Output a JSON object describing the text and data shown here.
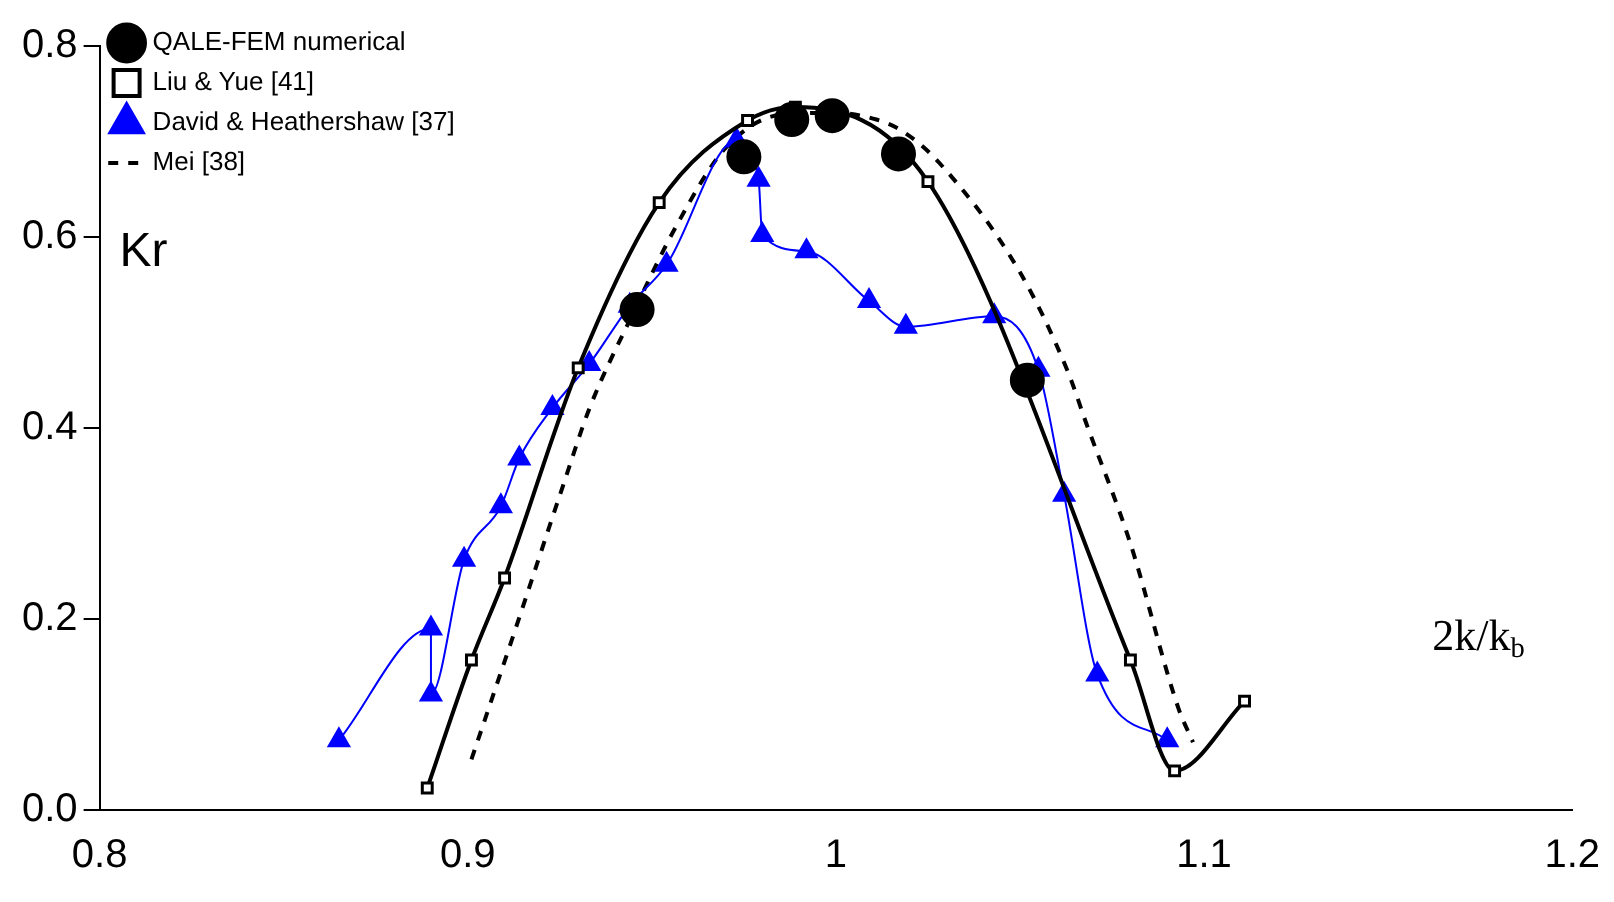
{
  "chart_data": {
    "type": "line",
    "ylabel": "Kr",
    "xlabel": "2k/k$_{b}$",
    "xlim": [
      0.8,
      1.2
    ],
    "xticks": [
      0.8,
      0.9,
      1,
      1.1,
      1.2
    ],
    "ylim": [
      0,
      0.8
    ],
    "yticks": [
      {
        "value": 0,
        "label": "0.0"
      },
      0.2,
      0.4,
      0.6,
      0.8
    ],
    "grid": false,
    "legend": "top left",
    "series": [
      {
        "name": "QALE-FEM numerical",
        "type": "scatter",
        "marker": "circle",
        "color": "#000000",
        "x": [
          0.946,
          0.975,
          0.988,
          0.999,
          1.017,
          1.052
        ],
        "values": [
          0.524,
          0.684,
          0.723,
          0.727,
          0.687,
          0.45
        ]
      },
      {
        "name": "Liu & Yue [41]",
        "type": "line",
        "marker": "square",
        "line_style": "solid",
        "color": "#000000",
        "x": [
          0.889,
          0.901,
          0.91,
          0.93,
          0.952,
          0.976,
          0.989,
          1.025,
          1.08,
          1.092,
          1.111
        ],
        "values": [
          0.023,
          0.157,
          0.243,
          0.463,
          0.636,
          0.722,
          0.736,
          0.658,
          0.157,
          0.041,
          0.114
        ]
      },
      {
        "name": "David & Heathershaw [37]",
        "type": "line",
        "marker": "triangle",
        "line_style": "solid",
        "color": "#0000ff",
        "x": [
          0.865,
          0.89,
          0.89,
          0.899,
          0.909,
          0.914,
          0.923,
          0.933,
          0.944,
          0.954,
          0.973,
          0.979,
          0.98,
          0.992,
          1.009,
          1.019,
          1.043,
          1.055,
          1.062,
          1.071,
          1.09
        ],
        "values": [
          0.073,
          0.19,
          0.121,
          0.262,
          0.318,
          0.368,
          0.421,
          0.467,
          0.528,
          0.571,
          0.701,
          0.66,
          0.602,
          0.585,
          0.533,
          0.506,
          0.517,
          0.461,
          0.33,
          0.142,
          0.073
        ]
      },
      {
        "name": "Mei [38]",
        "type": "line",
        "marker": "none",
        "line_style": "dashed",
        "color": "#000000",
        "x": [
          0.901,
          0.913,
          0.926,
          0.933,
          0.944,
          0.957,
          0.97,
          0.985,
          1.0,
          1.011,
          1.018,
          1.028,
          1.05,
          1.063,
          1.068,
          1.08,
          1.093,
          1.097
        ],
        "values": [
          0.053,
          0.19,
          0.341,
          0.42,
          0.513,
          0.614,
          0.693,
          0.728,
          0.73,
          0.723,
          0.711,
          0.678,
          0.563,
          0.459,
          0.405,
          0.279,
          0.107,
          0.071
        ]
      }
    ]
  }
}
